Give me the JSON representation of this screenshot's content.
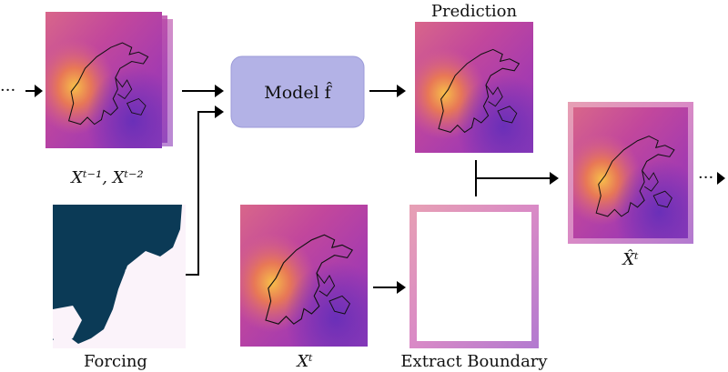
{
  "labels": {
    "prediction": "Prediction",
    "model": "Model f̂",
    "forcing": "Forcing",
    "extract_boundary": "Extract Boundary",
    "input_states": "Xᵗ⁻¹, Xᵗ⁻²",
    "current_state": "Xᵗ",
    "output_state": "X̂ᵗ",
    "ellipsis_in": "···",
    "ellipsis_out": "···"
  },
  "colors": {
    "model_box": "#b3b2e6",
    "model_box_border": "#9c9bd8",
    "forcing_land": "#0b3a56",
    "field_warm": "#f6b24a",
    "field_mid": "#c7479a",
    "field_cool": "#7a3ab8",
    "arrow": "#000000"
  }
}
